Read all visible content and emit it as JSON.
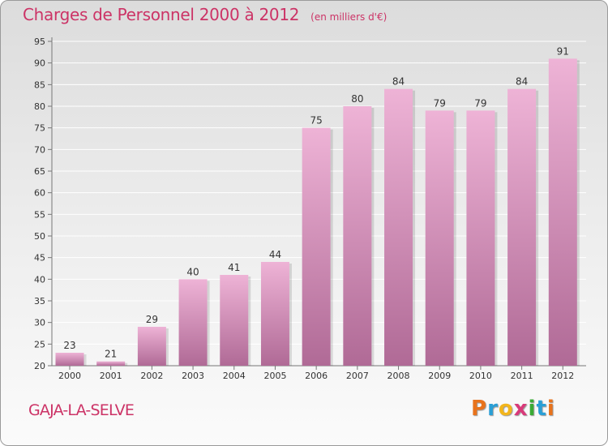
{
  "header": {
    "title": "Charges de Personnel 2000 à 2012",
    "subtitle": "(en milliers d'€)"
  },
  "footer": {
    "commune": "GAJA-LA-SELVE",
    "logo_text": "Proxiti",
    "logo_colors": [
      "#e8731c",
      "#2a9fd6",
      "#f2b51c",
      "#d93a7a",
      "#3aaa35",
      "#2a9fd6",
      "#e8731c"
    ]
  },
  "colors": {
    "bar_top": "#eeb3d6",
    "bar_bottom": "#b06a96",
    "title": "#cc3366",
    "grid": "#ffffff"
  },
  "chart_data": {
    "type": "bar",
    "title": "Charges de Personnel 2000 à 2012",
    "subtitle": "(en milliers d'€)",
    "xlabel": "",
    "ylabel": "",
    "categories": [
      "2000",
      "2001",
      "2002",
      "2003",
      "2004",
      "2005",
      "2006",
      "2007",
      "2008",
      "2009",
      "2010",
      "2011",
      "2012"
    ],
    "values": [
      23,
      21,
      29,
      40,
      41,
      44,
      75,
      80,
      84,
      79,
      79,
      84,
      91
    ],
    "data_labels": [
      "23",
      "21",
      "29",
      "40",
      "41",
      "44",
      "75",
      "80",
      "84",
      "79",
      "79",
      "84",
      "91"
    ],
    "ylim": [
      20,
      95
    ],
    "yticks": [
      20,
      25,
      30,
      35,
      40,
      45,
      50,
      55,
      60,
      65,
      70,
      75,
      80,
      85,
      90,
      95
    ],
    "grid": true,
    "legend": "none"
  }
}
